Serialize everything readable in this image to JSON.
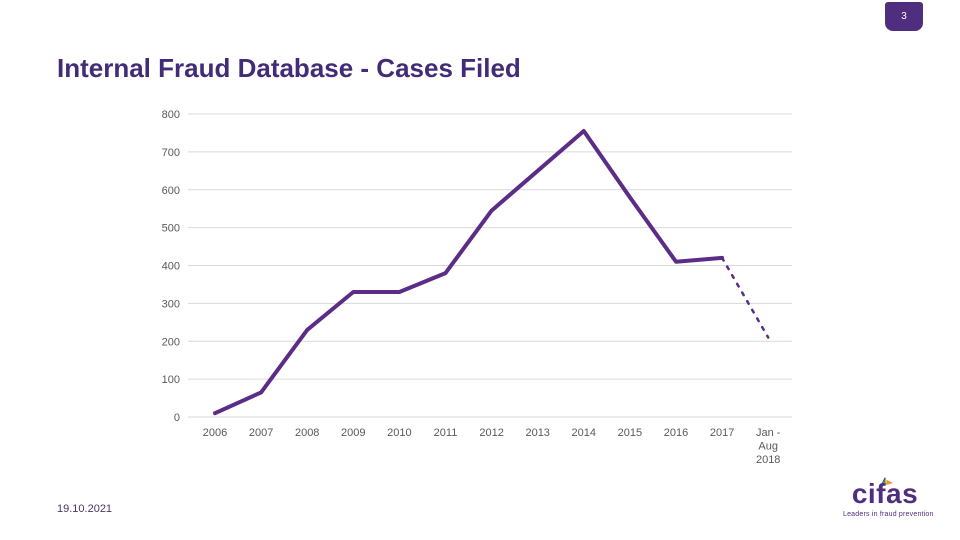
{
  "slide": {
    "page_number": "3",
    "title": "Internal Fraud Database - Cases Filed",
    "footer_date": "19.10.2021"
  },
  "logo": {
    "wordmark": "cifas",
    "tagline": "Leaders in fraud prevention"
  },
  "colors": {
    "accent_purple": "#4f2d7f",
    "line_purple": "#5b2d86",
    "grid_gray": "#d9d9d9",
    "axis_label_gray": "#595959"
  },
  "chart_data": {
    "type": "line",
    "title": "Internal Fraud Database - Cases Filed",
    "categories": [
      "2006",
      "2007",
      "2008",
      "2009",
      "2010",
      "2011",
      "2012",
      "2013",
      "2014",
      "2015",
      "2016",
      "2017",
      "Jan -\nAug\n2018"
    ],
    "series": [
      {
        "name": "Cases filed",
        "values": [
          10,
          65,
          230,
          330,
          330,
          380,
          545,
          650,
          755,
          580,
          410,
          420,
          210
        ],
        "style_note": "solid purple line through 2017; final segment to Jan-Aug 2018 is dashed"
      }
    ],
    "xlabel": "",
    "ylabel": "",
    "ylim": [
      0,
      800
    ],
    "ytick_step": 100,
    "yticks": [
      0,
      100,
      200,
      300,
      400,
      500,
      600,
      700,
      800
    ],
    "grid": true,
    "legend": false
  }
}
